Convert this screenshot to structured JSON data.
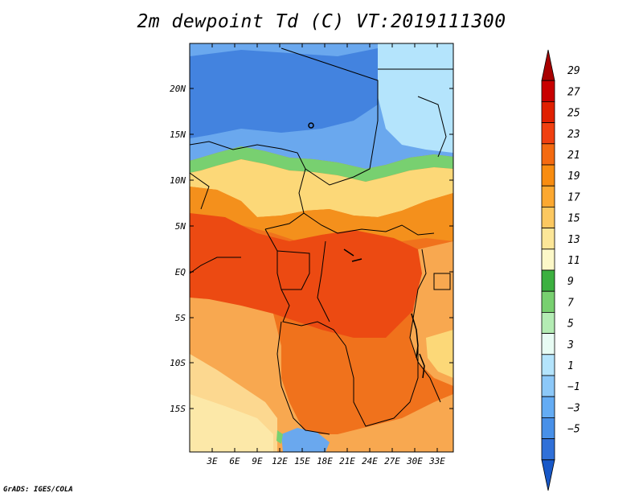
{
  "title": "2m dewpoint Td (C) VT:2019111300",
  "credit": "GrADS: IGES/COLA",
  "map": {
    "lat_labels": [
      "20N",
      "15N",
      "10N",
      "5N",
      "EQ",
      "5S",
      "10S",
      "15S"
    ],
    "lon_labels": [
      "3E",
      "6E",
      "9E",
      "12E",
      "15E",
      "18E",
      "21E",
      "24E",
      "27E",
      "30E",
      "33E"
    ]
  },
  "colorbar": {
    "labels": [
      "29",
      "27",
      "25",
      "23",
      "21",
      "19",
      "17",
      "15",
      "13",
      "11",
      "9",
      "7",
      "5",
      "3",
      "1",
      "−1",
      "−3",
      "−5"
    ],
    "colors": [
      "#a80000",
      "#c80000",
      "#e02000",
      "#f04010",
      "#f46a10",
      "#f88c10",
      "#fca830",
      "#fcc860",
      "#fce698",
      "#fcf8c8",
      "#3cb040",
      "#78d070",
      "#b4ecb4",
      "#e8fcf4",
      "#b4e4fc",
      "#8cc8f8",
      "#64acf4",
      "#4890e8",
      "#3070d8",
      "#1858c8"
    ]
  },
  "zones": {
    "north_dry": "#6aa8ee",
    "north_dry_dark": "#3c7cdc",
    "green_band": "#78d070",
    "yellow_band": "#fcd878",
    "orange_band": "#f4901c",
    "wet_core": "#ec4a12",
    "south_light": "#fcd890",
    "south_orange": "#f8a850",
    "borders": "#000000"
  }
}
